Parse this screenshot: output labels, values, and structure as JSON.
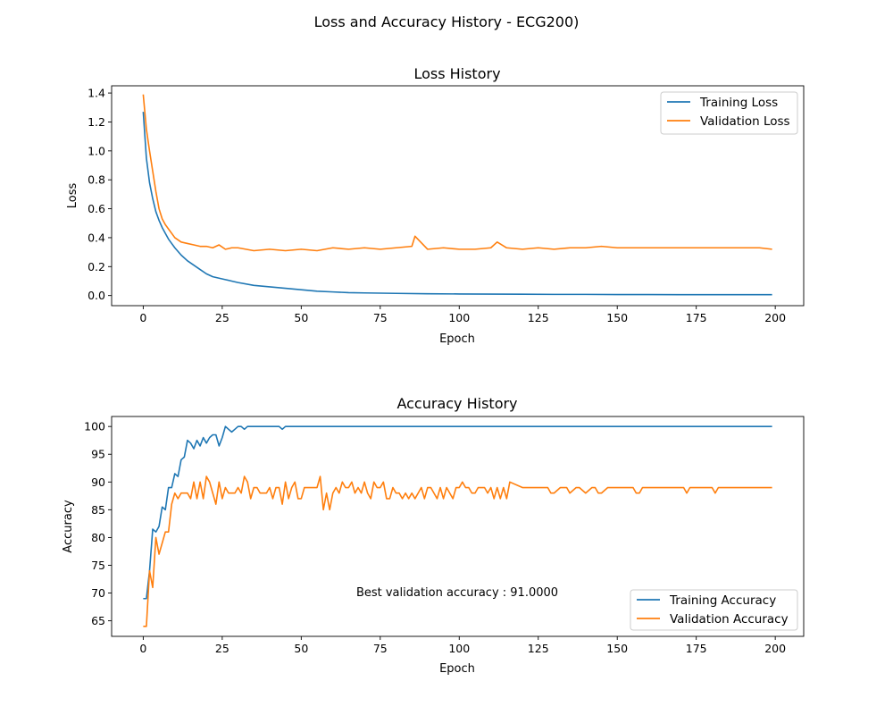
{
  "figure": {
    "suptitle": "Loss and Accuracy History - ECG200)"
  },
  "chart_data": [
    {
      "type": "line",
      "title": "Loss History",
      "xlabel": "Epoch",
      "ylabel": "Loss",
      "xlim": [
        -10,
        209
      ],
      "ylim": [
        -0.07,
        1.45
      ],
      "xticks": [
        0,
        25,
        50,
        75,
        100,
        125,
        150,
        175,
        200
      ],
      "yticks": [
        0.0,
        0.2,
        0.4,
        0.6,
        0.8,
        1.0,
        1.2,
        1.4
      ],
      "ytick_decimals": 1,
      "grid": false,
      "legend_position": "upper right",
      "annotation": "",
      "series": [
        {
          "name": "Training Loss",
          "color": "#1f77b4",
          "x": [
            0,
            1,
            2,
            3,
            4,
            5,
            6,
            7,
            8,
            9,
            10,
            12,
            14,
            16,
            18,
            20,
            22,
            24,
            26,
            28,
            30,
            35,
            40,
            45,
            50,
            55,
            60,
            65,
            70,
            80,
            90,
            100,
            110,
            120,
            130,
            140,
            150,
            160,
            170,
            180,
            190,
            199
          ],
          "y": [
            1.27,
            0.95,
            0.78,
            0.67,
            0.58,
            0.52,
            0.47,
            0.43,
            0.39,
            0.36,
            0.33,
            0.28,
            0.24,
            0.21,
            0.18,
            0.15,
            0.13,
            0.12,
            0.11,
            0.1,
            0.09,
            0.07,
            0.06,
            0.05,
            0.04,
            0.03,
            0.025,
            0.02,
            0.018,
            0.015,
            0.012,
            0.011,
            0.01,
            0.009,
            0.008,
            0.008,
            0.007,
            0.007,
            0.006,
            0.006,
            0.006,
            0.006
          ]
        },
        {
          "name": "Validation Loss",
          "color": "#ff7f0e",
          "x": [
            0,
            1,
            2,
            3,
            4,
            5,
            6,
            7,
            8,
            9,
            10,
            12,
            14,
            16,
            18,
            20,
            22,
            24,
            26,
            28,
            30,
            35,
            40,
            45,
            50,
            55,
            60,
            65,
            70,
            75,
            80,
            85,
            86,
            90,
            95,
            100,
            105,
            110,
            112,
            115,
            120,
            125,
            130,
            135,
            140,
            145,
            150,
            155,
            160,
            165,
            170,
            175,
            180,
            185,
            190,
            195,
            199
          ],
          "y": [
            1.39,
            1.15,
            1.0,
            0.86,
            0.72,
            0.6,
            0.53,
            0.49,
            0.46,
            0.43,
            0.4,
            0.37,
            0.36,
            0.35,
            0.34,
            0.34,
            0.33,
            0.35,
            0.32,
            0.33,
            0.33,
            0.31,
            0.32,
            0.31,
            0.32,
            0.31,
            0.33,
            0.32,
            0.33,
            0.32,
            0.33,
            0.34,
            0.41,
            0.32,
            0.33,
            0.32,
            0.32,
            0.33,
            0.37,
            0.33,
            0.32,
            0.33,
            0.32,
            0.33,
            0.33,
            0.34,
            0.33,
            0.33,
            0.33,
            0.33,
            0.33,
            0.33,
            0.33,
            0.33,
            0.33,
            0.33,
            0.32
          ]
        }
      ]
    },
    {
      "type": "line",
      "title": "Accuracy History",
      "xlabel": "Epoch",
      "ylabel": "Accuracy",
      "xlim": [
        -10,
        209
      ],
      "ylim": [
        62.2,
        101.8
      ],
      "xticks": [
        0,
        25,
        50,
        75,
        100,
        125,
        150,
        175,
        200
      ],
      "yticks": [
        65,
        70,
        75,
        80,
        85,
        90,
        95,
        100
      ],
      "ytick_decimals": 0,
      "grid": false,
      "legend_position": "lower right",
      "annotation": "Best validation accuracy : 91.0000",
      "series": [
        {
          "name": "Training Accuracy",
          "color": "#1f77b4",
          "x": [
            0,
            1,
            2,
            3,
            4,
            5,
            6,
            7,
            8,
            9,
            10,
            11,
            12,
            13,
            14,
            15,
            16,
            17,
            18,
            19,
            20,
            21,
            22,
            23,
            24,
            25,
            26,
            27,
            28,
            29,
            30,
            31,
            32,
            33,
            34,
            35,
            40,
            43,
            44,
            45,
            50,
            100,
            150,
            199
          ],
          "y": [
            69,
            69,
            74,
            81.5,
            81,
            82,
            85.5,
            85,
            89,
            89,
            91.5,
            91,
            94,
            94.5,
            97.5,
            97,
            96,
            97.5,
            96.5,
            98,
            97,
            98,
            98.5,
            98.5,
            96.5,
            98,
            100,
            99.5,
            99,
            99.5,
            100,
            100,
            99.5,
            100,
            100,
            100,
            100,
            100,
            99.5,
            100,
            100,
            100,
            100,
            100
          ]
        },
        {
          "name": "Validation Accuracy",
          "color": "#ff7f0e",
          "x": [
            0,
            1,
            2,
            3,
            4,
            5,
            6,
            7,
            8,
            9,
            10,
            11,
            12,
            13,
            14,
            15,
            16,
            17,
            18,
            19,
            20,
            21,
            22,
            23,
            24,
            25,
            26,
            27,
            28,
            29,
            30,
            31,
            32,
            33,
            34,
            35,
            36,
            37,
            38,
            39,
            40,
            41,
            42,
            43,
            44,
            45,
            46,
            47,
            48,
            49,
            50,
            51,
            52,
            53,
            54,
            55,
            56,
            57,
            58,
            59,
            60,
            61,
            62,
            63,
            64,
            65,
            66,
            67,
            68,
            69,
            70,
            71,
            72,
            73,
            74,
            75,
            76,
            77,
            78,
            79,
            80,
            81,
            82,
            83,
            84,
            85,
            86,
            87,
            88,
            89,
            90,
            91,
            92,
            93,
            94,
            95,
            96,
            97,
            98,
            99,
            100,
            101,
            102,
            103,
            104,
            105,
            106,
            107,
            108,
            109,
            110,
            111,
            112,
            113,
            114,
            115,
            116,
            120,
            125,
            128,
            129,
            130,
            132,
            133,
            134,
            135,
            137,
            138,
            140,
            142,
            143,
            144,
            145,
            147,
            150,
            155,
            156,
            157,
            158,
            160,
            165,
            170,
            171,
            172,
            173,
            175,
            180,
            181,
            182,
            185,
            190,
            199
          ],
          "y": [
            64,
            64,
            74,
            71,
            80,
            77,
            79,
            81,
            81,
            86,
            88,
            87,
            88,
            88,
            88,
            87,
            90,
            87,
            90,
            87,
            91,
            90,
            88,
            86,
            90,
            87,
            89,
            88,
            88,
            88,
            89,
            88,
            91,
            90,
            87,
            89,
            89,
            88,
            88,
            88,
            89,
            87,
            89,
            89,
            86,
            90,
            87,
            89,
            90,
            87,
            87,
            89,
            89,
            89,
            89,
            89,
            91,
            85,
            88,
            85,
            88,
            89,
            88,
            90,
            89,
            89,
            90,
            88,
            89,
            88,
            90,
            88,
            87,
            90,
            89,
            89,
            90,
            87,
            87,
            89,
            88,
            88,
            87,
            88,
            87,
            88,
            87,
            88,
            89,
            87,
            89,
            89,
            88,
            87,
            89,
            87,
            89,
            88,
            87,
            89,
            89,
            90,
            89,
            89,
            88,
            88,
            89,
            89,
            89,
            88,
            89,
            87,
            89,
            87,
            89,
            87,
            90,
            89,
            89,
            89,
            88,
            88,
            89,
            89,
            89,
            88,
            89,
            89,
            88,
            89,
            89,
            88,
            88,
            89,
            89,
            89,
            88,
            88,
            89,
            89,
            89,
            89,
            89,
            88,
            89,
            89,
            89,
            88,
            89,
            89,
            89,
            89
          ]
        }
      ]
    }
  ]
}
